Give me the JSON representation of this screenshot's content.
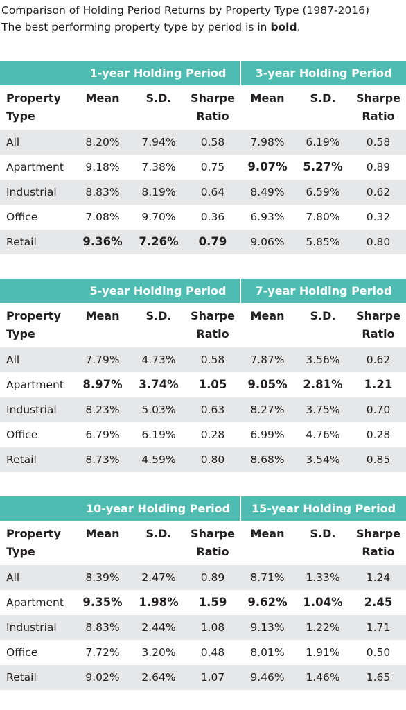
{
  "header": {
    "title": "Comparison of Holding Period Returns by Property Type (1987-2016)",
    "subtitle": {
      "before": "The best performing property type by period is in ",
      "bold": "bold",
      "after": "."
    }
  },
  "tables": [
    {
      "groups": [
        "1-year Holding Period",
        "3-year Holding Period"
      ],
      "columns": [
        "Property Type",
        "Mean",
        "S.D.",
        "Sharpe Ratio",
        "Mean",
        "S.D.",
        "Sharpe Ratio"
      ],
      "rows": [
        [
          "All",
          "8.20%",
          "7.94%",
          "0.58",
          "7.98%",
          "6.19%",
          "0.58"
        ],
        [
          "Apartment",
          "9.18%",
          "7.38%",
          "0.75",
          "9.07%",
          "5.27%",
          "0.89"
        ],
        [
          "Industrial",
          "8.83%",
          "8.19%",
          "0.64",
          "8.49%",
          "6.59%",
          "0.62"
        ],
        [
          "Office",
          "7.08%",
          "9.70%",
          "0.36",
          "6.93%",
          "7.80%",
          "0.32"
        ],
        [
          "Retail",
          "9.36%",
          "7.26%",
          "0.79",
          "9.06%",
          "5.85%",
          "0.80"
        ]
      ],
      "bold": [
        [
          4,
          1
        ],
        [
          4,
          2
        ],
        [
          4,
          3
        ],
        [
          1,
          4
        ],
        [
          1,
          5
        ]
      ]
    },
    {
      "groups": [
        "5-year Holding Period",
        "7-year Holding Period"
      ],
      "columns": [
        "Property Type",
        "Mean",
        "S.D.",
        "Sharpe Ratio",
        "Mean",
        "S.D.",
        "Sharpe Ratio"
      ],
      "rows": [
        [
          "All",
          "7.79%",
          "4.73%",
          "0.58",
          "7.87%",
          "3.56%",
          "0.62"
        ],
        [
          "Apartment",
          "8.97%",
          "3.74%",
          "1.05",
          "9.05%",
          "2.81%",
          "1.21"
        ],
        [
          "Industrial",
          "8.23%",
          "5.03%",
          "0.63",
          "8.27%",
          "3.75%",
          "0.70"
        ],
        [
          "Office",
          "6.79%",
          "6.19%",
          "0.28",
          "6.99%",
          "4.76%",
          "0.28"
        ],
        [
          "Retail",
          "8.73%",
          "4.59%",
          "0.80",
          "8.68%",
          "3.54%",
          "0.85"
        ]
      ],
      "bold": [
        [
          1,
          1
        ],
        [
          1,
          2
        ],
        [
          1,
          3
        ],
        [
          1,
          4
        ],
        [
          1,
          5
        ],
        [
          1,
          6
        ]
      ]
    },
    {
      "groups": [
        "10-year Holding Period",
        "15-year Holding Period"
      ],
      "columns": [
        "Property Type",
        "Mean",
        "S.D.",
        "Sharpe Ratio",
        "Mean",
        "S.D.",
        "Sharpe Ratio"
      ],
      "rows": [
        [
          "All",
          "8.39%",
          "2.47%",
          "0.89",
          "8.71%",
          "1.33%",
          "1.24"
        ],
        [
          "Apartment",
          "9.35%",
          "1.98%",
          "1.59",
          "9.62%",
          "1.04%",
          "2.45"
        ],
        [
          "Industrial",
          "8.83%",
          "2.44%",
          "1.08",
          "9.13%",
          "1.22%",
          "1.71"
        ],
        [
          "Office",
          "7.72%",
          "3.20%",
          "0.48",
          "8.01%",
          "1.91%",
          "0.50"
        ],
        [
          "Retail",
          "9.02%",
          "2.64%",
          "1.07",
          "9.46%",
          "1.46%",
          "1.65"
        ]
      ],
      "bold": [
        [
          1,
          1
        ],
        [
          1,
          2
        ],
        [
          1,
          3
        ],
        [
          1,
          4
        ],
        [
          1,
          5
        ],
        [
          1,
          6
        ]
      ]
    }
  ]
}
